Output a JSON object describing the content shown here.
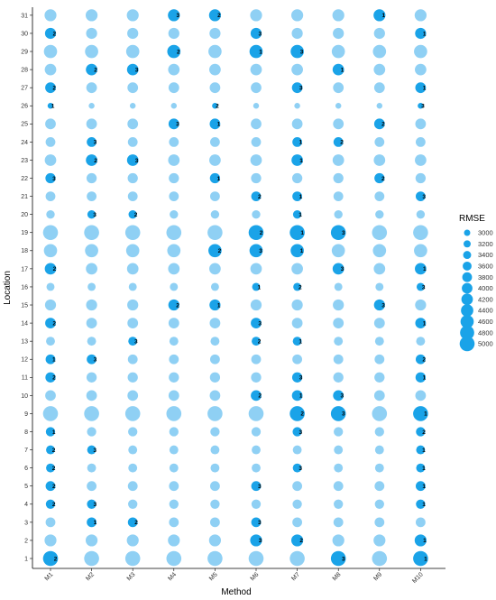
{
  "chart_data": {
    "type": "scatter",
    "subtype": "bubble-matrix",
    "xlabel": "Method",
    "ylabel": "Location",
    "methods": [
      "M1",
      "M2",
      "M3",
      "M4",
      "M5",
      "M6",
      "M7",
      "M8",
      "M9",
      "M10"
    ],
    "locations": [
      1,
      2,
      3,
      4,
      5,
      6,
      7,
      8,
      9,
      10,
      11,
      12,
      13,
      14,
      15,
      16,
      17,
      18,
      19,
      20,
      21,
      22,
      23,
      24,
      25,
      26,
      27,
      28,
      29,
      30,
      31
    ],
    "legend": {
      "title": "RMSE",
      "placement": "right",
      "values": [
        3000,
        3200,
        3400,
        3600,
        3800,
        4000,
        4200,
        4400,
        4600,
        4800,
        5000
      ]
    },
    "colors": {
      "ranked": "#1aa3e8",
      "unranked": "#8fd0f4"
    },
    "location_rmse": {
      "1": 5000,
      "2": 4300,
      "3": 3800,
      "4": 3700,
      "5": 3800,
      "6": 3600,
      "7": 3600,
      "8": 3700,
      "9": 5000,
      "10": 4000,
      "11": 3900,
      "12": 3800,
      "13": 3600,
      "14": 4000,
      "15": 4100,
      "16": 3400,
      "17": 4200,
      "18": 4600,
      "19": 5000,
      "20": 3500,
      "21": 3800,
      "22": 3900,
      "23": 4200,
      "24": 3800,
      "25": 4000,
      "26": 2900,
      "27": 4000,
      "28": 4200,
      "29": 4600,
      "30": 4100,
      "31": 4300
    },
    "ranks": [
      {
        "location": 1,
        "method": "M1",
        "rank": "2"
      },
      {
        "location": 1,
        "method": "M8",
        "rank": "3"
      },
      {
        "location": 1,
        "method": "M10",
        "rank": "1"
      },
      {
        "location": 2,
        "method": "M6",
        "rank": "3"
      },
      {
        "location": 2,
        "method": "M7",
        "rank": "2"
      },
      {
        "location": 2,
        "method": "M10",
        "rank": "1"
      },
      {
        "location": 3,
        "method": "M2",
        "rank": "1"
      },
      {
        "location": 3,
        "method": "M3",
        "rank": "2"
      },
      {
        "location": 3,
        "method": "M6",
        "rank": "3"
      },
      {
        "location": 4,
        "method": "M1",
        "rank": "2"
      },
      {
        "location": 4,
        "method": "M2",
        "rank": "3"
      },
      {
        "location": 4,
        "method": "M10",
        "rank": "1"
      },
      {
        "location": 5,
        "method": "M1",
        "rank": "2"
      },
      {
        "location": 5,
        "method": "M6",
        "rank": "3"
      },
      {
        "location": 5,
        "method": "M10",
        "rank": "1"
      },
      {
        "location": 6,
        "method": "M1",
        "rank": "2"
      },
      {
        "location": 6,
        "method": "M7",
        "rank": "3"
      },
      {
        "location": 6,
        "method": "M10",
        "rank": "1"
      },
      {
        "location": 7,
        "method": "M1",
        "rank": "2"
      },
      {
        "location": 7,
        "method": "M2",
        "rank": "3"
      },
      {
        "location": 7,
        "method": "M10",
        "rank": "1"
      },
      {
        "location": 8,
        "method": "M1",
        "rank": "1"
      },
      {
        "location": 8,
        "method": "M7",
        "rank": "3"
      },
      {
        "location": 8,
        "method": "M10",
        "rank": "2"
      },
      {
        "location": 9,
        "method": "M7",
        "rank": "2"
      },
      {
        "location": 9,
        "method": "M8",
        "rank": "3"
      },
      {
        "location": 9,
        "method": "M10",
        "rank": "1"
      },
      {
        "location": 10,
        "method": "M6",
        "rank": "2"
      },
      {
        "location": 10,
        "method": "M7",
        "rank": "1"
      },
      {
        "location": 10,
        "method": "M8",
        "rank": "3"
      },
      {
        "location": 11,
        "method": "M1",
        "rank": "2"
      },
      {
        "location": 11,
        "method": "M7",
        "rank": "3"
      },
      {
        "location": 11,
        "method": "M10",
        "rank": "1"
      },
      {
        "location": 12,
        "method": "M1",
        "rank": "1"
      },
      {
        "location": 12,
        "method": "M2",
        "rank": "3"
      },
      {
        "location": 12,
        "method": "M10",
        "rank": "2"
      },
      {
        "location": 13,
        "method": "M3",
        "rank": "3"
      },
      {
        "location": 13,
        "method": "M6",
        "rank": "2"
      },
      {
        "location": 13,
        "method": "M7",
        "rank": "1"
      },
      {
        "location": 14,
        "method": "M1",
        "rank": "2"
      },
      {
        "location": 14,
        "method": "M6",
        "rank": "3"
      },
      {
        "location": 14,
        "method": "M10",
        "rank": "1"
      },
      {
        "location": 15,
        "method": "M4",
        "rank": "2"
      },
      {
        "location": 15,
        "method": "M5",
        "rank": "1"
      },
      {
        "location": 15,
        "method": "M9",
        "rank": "3"
      },
      {
        "location": 16,
        "method": "M6",
        "rank": "1"
      },
      {
        "location": 16,
        "method": "M7",
        "rank": "2"
      },
      {
        "location": 16,
        "method": "M10",
        "rank": "3"
      },
      {
        "location": 17,
        "method": "M1",
        "rank": "2"
      },
      {
        "location": 17,
        "method": "M8",
        "rank": "3"
      },
      {
        "location": 17,
        "method": "M10",
        "rank": "1"
      },
      {
        "location": 18,
        "method": "M5",
        "rank": "2"
      },
      {
        "location": 18,
        "method": "M6",
        "rank": "3"
      },
      {
        "location": 18,
        "method": "M7",
        "rank": "1"
      },
      {
        "location": 19,
        "method": "M6",
        "rank": "2"
      },
      {
        "location": 19,
        "method": "M7",
        "rank": "1"
      },
      {
        "location": 19,
        "method": "M8",
        "rank": "3"
      },
      {
        "location": 20,
        "method": "M2",
        "rank": "3"
      },
      {
        "location": 20,
        "method": "M3",
        "rank": "2"
      },
      {
        "location": 20,
        "method": "M7",
        "rank": "1"
      },
      {
        "location": 21,
        "method": "M6",
        "rank": "2"
      },
      {
        "location": 21,
        "method": "M7",
        "rank": "1"
      },
      {
        "location": 21,
        "method": "M10",
        "rank": "3"
      },
      {
        "location": 22,
        "method": "M1",
        "rank": "3"
      },
      {
        "location": 22,
        "method": "M5",
        "rank": "1"
      },
      {
        "location": 22,
        "method": "M9",
        "rank": "2"
      },
      {
        "location": 23,
        "method": "M2",
        "rank": "2"
      },
      {
        "location": 23,
        "method": "M3",
        "rank": "3"
      },
      {
        "location": 23,
        "method": "M7",
        "rank": "1"
      },
      {
        "location": 24,
        "method": "M2",
        "rank": "3"
      },
      {
        "location": 24,
        "method": "M7",
        "rank": "1"
      },
      {
        "location": 24,
        "method": "M8",
        "rank": "2"
      },
      {
        "location": 25,
        "method": "M4",
        "rank": "3"
      },
      {
        "location": 25,
        "method": "M5",
        "rank": "1"
      },
      {
        "location": 25,
        "method": "M9",
        "rank": "2"
      },
      {
        "location": 26,
        "method": "M1",
        "rank": "1"
      },
      {
        "location": 26,
        "method": "M5",
        "rank": "2"
      },
      {
        "location": 26,
        "method": "M10",
        "rank": "3"
      },
      {
        "location": 27,
        "method": "M1",
        "rank": "2"
      },
      {
        "location": 27,
        "method": "M7",
        "rank": "3"
      },
      {
        "location": 27,
        "method": "M10",
        "rank": "1"
      },
      {
        "location": 28,
        "method": "M2",
        "rank": "2"
      },
      {
        "location": 28,
        "method": "M3",
        "rank": "3"
      },
      {
        "location": 28,
        "method": "M8",
        "rank": "1"
      },
      {
        "location": 29,
        "method": "M4",
        "rank": "2"
      },
      {
        "location": 29,
        "method": "M6",
        "rank": "1"
      },
      {
        "location": 29,
        "method": "M7",
        "rank": "3"
      },
      {
        "location": 30,
        "method": "M1",
        "rank": "2"
      },
      {
        "location": 30,
        "method": "M6",
        "rank": "3"
      },
      {
        "location": 30,
        "method": "M10",
        "rank": "1"
      },
      {
        "location": 31,
        "method": "M4",
        "rank": "3"
      },
      {
        "location": 31,
        "method": "M5",
        "rank": "2"
      },
      {
        "location": 31,
        "method": "M9",
        "rank": "1"
      }
    ],
    "grid": false
  }
}
